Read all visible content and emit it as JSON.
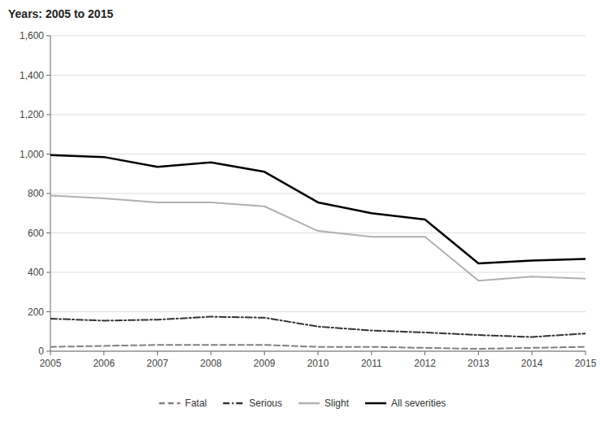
{
  "chart_data": {
    "type": "line",
    "title": "Years: 2005 to 2015",
    "x": [
      2005,
      2006,
      2007,
      2008,
      2009,
      2010,
      2011,
      2012,
      2013,
      2014,
      2015
    ],
    "xlim": [
      2005,
      2015
    ],
    "xticks": [
      2005,
      2006,
      2007,
      2008,
      2009,
      2010,
      2011,
      2012,
      2013,
      2014,
      2015
    ],
    "ylim": [
      0,
      1600
    ],
    "yticks": [
      0,
      200,
      400,
      600,
      800,
      {
        "value": 1000,
        "label": "1,000"
      },
      {
        "value": 1200,
        "label": "1,200"
      },
      {
        "value": 1400,
        "label": "1,400"
      },
      {
        "value": 1600,
        "label": "1,600"
      }
    ],
    "grid": true,
    "legend": "bottom",
    "series": [
      {
        "name": "Fatal",
        "color": "#808080",
        "line_style": "dashed",
        "values": [
          22,
          27,
          32,
          32,
          32,
          22,
          22,
          17,
          12,
          17,
          22
        ]
      },
      {
        "name": "Serious",
        "color": "#333333",
        "line_style": "dashdot",
        "values": [
          165,
          155,
          160,
          175,
          170,
          125,
          105,
          95,
          82,
          72,
          90
        ]
      },
      {
        "name": "Slight",
        "color": "#b0b0b0",
        "line_style": "solid",
        "values": [
          790,
          775,
          755,
          755,
          735,
          610,
          580,
          580,
          358,
          378,
          368
        ]
      },
      {
        "name": "All severities",
        "color": "#000000",
        "line_style": "solid",
        "values": [
          995,
          985,
          935,
          958,
          910,
          755,
          700,
          668,
          445,
          460,
          468
        ]
      }
    ]
  }
}
